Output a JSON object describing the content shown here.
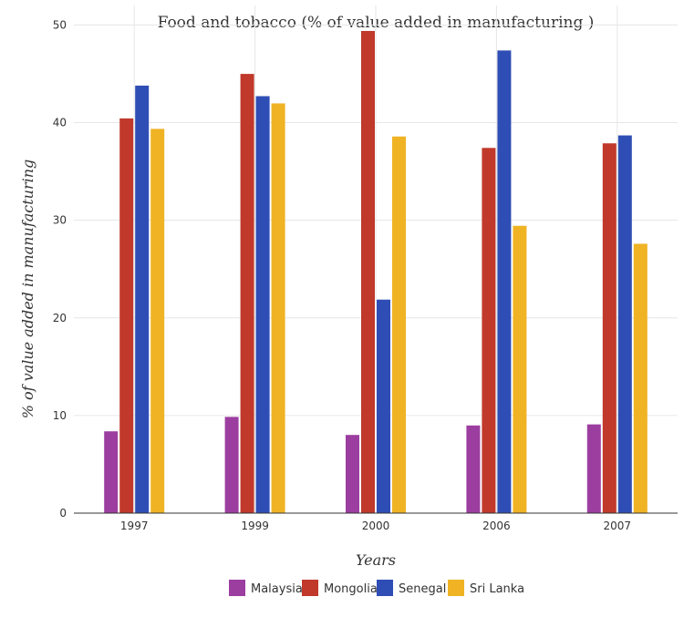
{
  "chart_data": {
    "type": "bar",
    "title": "Food and tobacco (% of value added in manufacturing )",
    "xlabel": "Years",
    "ylabel": "% of value added in manufacturing",
    "categories": [
      "1997",
      "1999",
      "2000",
      "2006",
      "2007"
    ],
    "ylim": [
      0,
      52
    ],
    "yticks": [
      "0",
      "10",
      "20",
      "30",
      "40",
      "50"
    ],
    "grid": true,
    "legend_position": "bottom-center",
    "series": [
      {
        "name": "Malaysia",
        "color": "#9c3ea0",
        "values": [
          8.38,
          9.86,
          8.01,
          8.98,
          9.09
        ]
      },
      {
        "name": "Mongolia",
        "color": "#c0392b",
        "values": [
          40.43,
          44.99,
          49.39,
          37.41,
          37.88
        ]
      },
      {
        "name": "Senegal",
        "color": "#2f4eb5",
        "values": [
          43.79,
          42.71,
          21.87,
          47.39,
          38.69
        ]
      },
      {
        "name": "Sri Lanka",
        "color": "#efb324",
        "values": [
          39.36,
          41.97,
          38.58,
          29.43,
          27.59
        ]
      }
    ]
  }
}
